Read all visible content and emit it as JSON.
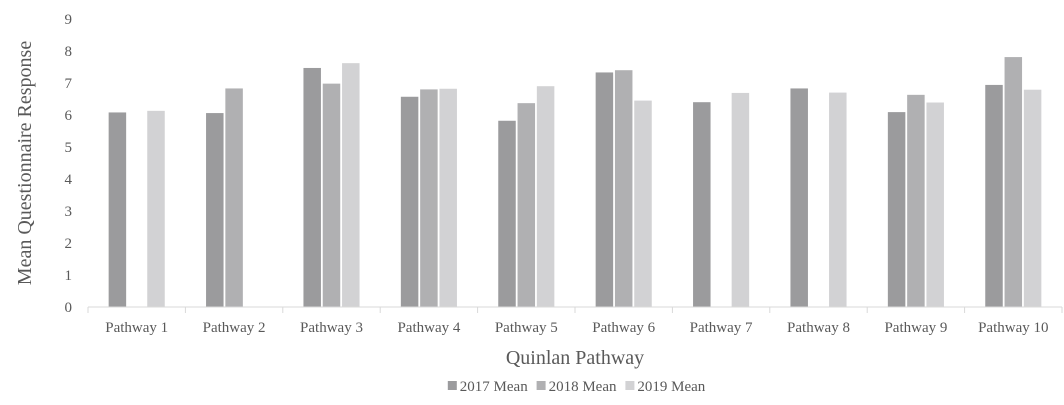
{
  "chart_data": {
    "type": "bar",
    "title": "",
    "xlabel": "Quinlan Pathway",
    "ylabel": "Mean Questionnaire Response",
    "ylim": [
      0,
      9
    ],
    "yticks": [
      "0",
      "1",
      "2",
      "3",
      "4",
      "5",
      "6",
      "7",
      "8",
      "9"
    ],
    "grid": false,
    "legend_position": "bottom",
    "categories": [
      "Pathway 1",
      "Pathway 2",
      "Pathway 3",
      "Pathway 4",
      "Pathway 5",
      "Pathway 6",
      "Pathway 7",
      "Pathway 8",
      "Pathway 9",
      "Pathway 10"
    ],
    "series": [
      {
        "name": "2017 Mean",
        "color": "#9b9b9d",
        "values": [
          6.08,
          6.06,
          7.47,
          6.57,
          5.82,
          7.33,
          6.4,
          6.83,
          6.09,
          6.94
        ]
      },
      {
        "name": "2018 Mean",
        "color": "#b0b0b2",
        "values": [
          null,
          6.83,
          6.98,
          6.8,
          6.37,
          7.4,
          null,
          null,
          6.63,
          7.81
        ]
      },
      {
        "name": "2019 Mean",
        "color": "#d2d2d4",
        "values": [
          6.13,
          null,
          7.62,
          6.82,
          6.9,
          6.45,
          6.69,
          6.7,
          6.39,
          6.79
        ]
      }
    ]
  }
}
